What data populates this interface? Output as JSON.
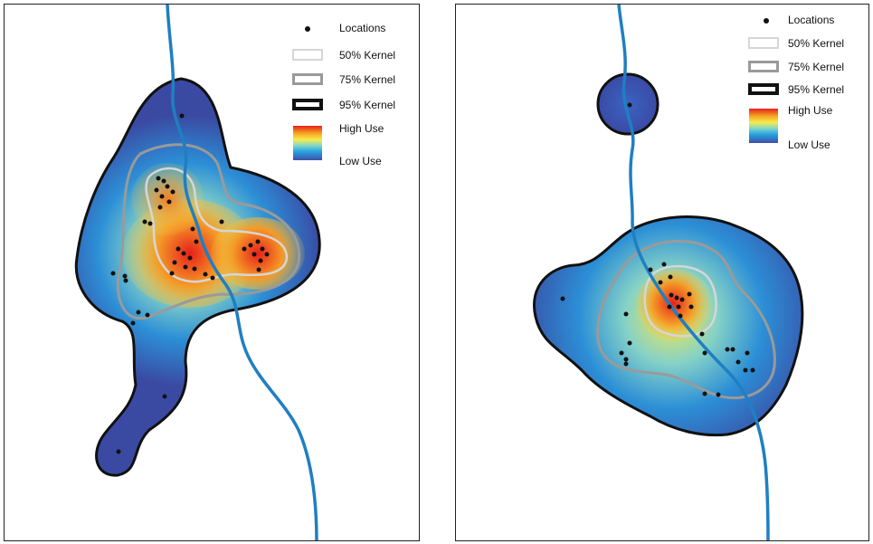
{
  "colors": {
    "river": "#1f7fc2",
    "contour_50": "#d6d6d6",
    "contour_75": "#9a9a9a",
    "contour_95": "#111111",
    "high_use": "#e8201c",
    "low_use": "#3e4fa8",
    "location_point": "#111111"
  },
  "panels": [
    {
      "id": "left",
      "legend": {
        "locations_label": "Locations",
        "kernel_50_label": "50% Kernel",
        "kernel_75_label": "75% Kernel",
        "kernel_95_label": "95% Kernel",
        "high_use_label": "High Use",
        "low_use_label": "Low Use"
      }
    },
    {
      "id": "right",
      "legend": {
        "locations_label": "Locations",
        "kernel_50_label": "50% Kernel",
        "kernel_75_label": "75% Kernel",
        "kernel_95_label": "95% Kernel",
        "high_use_label": "High Use",
        "low_use_label": "Low Use"
      }
    }
  ]
}
